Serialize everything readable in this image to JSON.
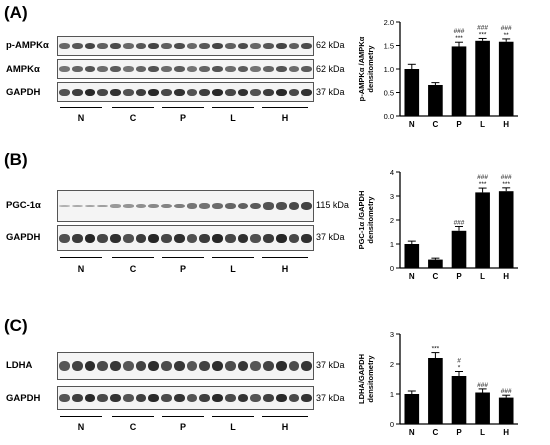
{
  "panels": [
    {
      "letter": "(A)",
      "blot_rows": [
        {
          "label": "p-AMPKα",
          "kda": "62 kDa"
        },
        {
          "label": "AMPKα",
          "kda": "62 kDa"
        },
        {
          "label": "GAPDH",
          "kda": "37 kDa"
        }
      ],
      "groups": [
        "N",
        "C",
        "P",
        "L",
        "H"
      ]
    },
    {
      "letter": "(B)",
      "blot_rows": [
        {
          "label": "PGC-1α",
          "kda": "115 kDa"
        },
        {
          "label": "GAPDH",
          "kda": "37 kDa"
        }
      ],
      "groups": [
        "N",
        "C",
        "P",
        "L",
        "H"
      ]
    },
    {
      "letter": "(C)",
      "blot_rows": [
        {
          "label": "LDHA",
          "kda": "37 kDa"
        },
        {
          "label": "GAPDH",
          "kda": "37 kDa"
        }
      ],
      "groups": [
        "N",
        "C",
        "P",
        "L",
        "H"
      ]
    }
  ],
  "chart_data": [
    {
      "type": "bar",
      "ylabel": [
        "p-AMPKα /AMPKα",
        "densitometry"
      ],
      "categories": [
        "N",
        "C",
        "P",
        "L",
        "H"
      ],
      "values": [
        1.0,
        0.66,
        1.48,
        1.6,
        1.58
      ],
      "errors": [
        0.1,
        0.05,
        0.09,
        0.05,
        0.06
      ],
      "ylim": [
        0,
        2.0
      ],
      "yticks": [
        "0.0",
        "0.5",
        "1.0",
        "1.5",
        "2.0"
      ],
      "annotations": [
        [],
        [],
        [
          "###",
          "***"
        ],
        [
          "###",
          "***"
        ],
        [
          "###",
          "**"
        ]
      ]
    },
    {
      "type": "bar",
      "ylabel": [
        "PGC-1α /GAPDH",
        "densitometry"
      ],
      "categories": [
        "N",
        "C",
        "P",
        "L",
        "H"
      ],
      "values": [
        1.0,
        0.35,
        1.55,
        3.15,
        3.2
      ],
      "errors": [
        0.12,
        0.06,
        0.18,
        0.18,
        0.14
      ],
      "ylim": [
        0,
        4
      ],
      "yticks": [
        "0",
        "1",
        "2",
        "3",
        "4"
      ],
      "annotations": [
        [],
        [],
        [
          "###"
        ],
        [
          "###",
          "***"
        ],
        [
          "###",
          "***"
        ]
      ]
    },
    {
      "type": "bar",
      "ylabel": [
        "LDHA/GAPDH",
        "densitometry"
      ],
      "categories": [
        "N",
        "C",
        "P",
        "L",
        "H"
      ],
      "values": [
        1.0,
        2.2,
        1.6,
        1.05,
        0.88
      ],
      "errors": [
        0.1,
        0.18,
        0.15,
        0.12,
        0.08
      ],
      "ylim": [
        0,
        3
      ],
      "yticks": [
        "0",
        "1",
        "2",
        "3"
      ],
      "annotations": [
        [],
        [
          "***"
        ],
        [
          "#",
          "*"
        ],
        [
          "###"
        ],
        [
          "###"
        ]
      ]
    }
  ]
}
